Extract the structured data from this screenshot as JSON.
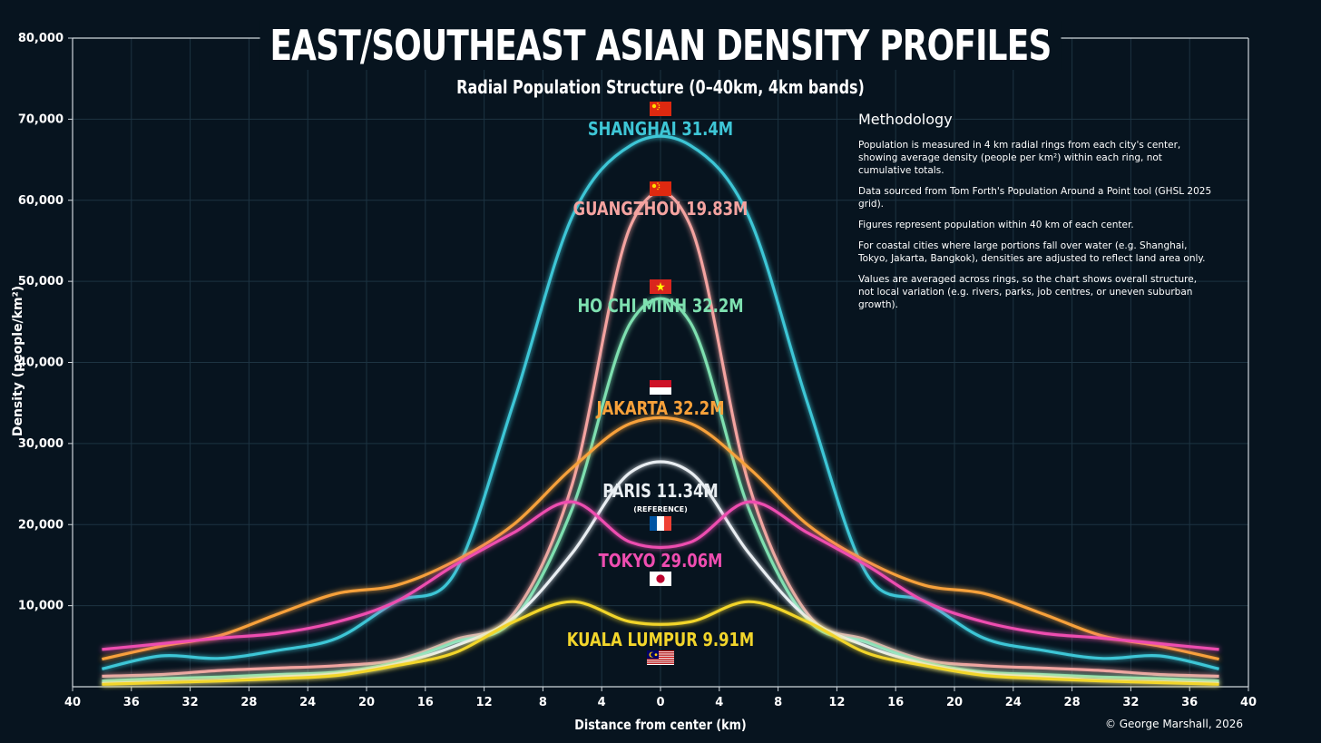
{
  "title": "EAST/SOUTHEAST ASIAN DENSITY PROFILES",
  "subtitle": "Radial Population Structure (0–40km, 4km bands)",
  "credit": "© George Marshall, 2026",
  "methodology": {
    "heading": "Methodology",
    "paragraphs": [
      "Population is measured in 4 km radial rings from each city's center, showing average density (people per km²) within each ring, not cumulative totals.",
      "Data sourced from Tom Forth's Population Around a Point tool (GHSL 2025 grid).",
      "Figures represent population within 40 km of each center.",
      "For coastal cities where large portions fall over water (e.g. Shanghai, Tokyo, Jakarta, Bangkok), densities are adjusted to reflect land area only.",
      "Values are averaged across rings, so the chart shows overall structure, not local variation (e.g. rivers, parks, job centres, or uneven suburban growth)."
    ]
  },
  "chart_data": {
    "type": "line",
    "xlabel": "Distance from center (km)",
    "ylabel": "Density (people/km²)",
    "xlim": [
      -40,
      40
    ],
    "ylim": [
      0,
      80000
    ],
    "x_tick_labels": [
      "40",
      "36",
      "32",
      "28",
      "24",
      "20",
      "16",
      "12",
      "8",
      "4",
      "0",
      "4",
      "8",
      "12",
      "16",
      "20",
      "24",
      "28",
      "32",
      "36",
      "40"
    ],
    "y_tick_labels": [
      "10,000",
      "20,000",
      "30,000",
      "40,000",
      "50,000",
      "60,000",
      "70,000",
      "80,000"
    ],
    "grid": true,
    "x_ring_distances": [
      2,
      6,
      10,
      14,
      18,
      22,
      26,
      30,
      34,
      38
    ],
    "series": [
      {
        "name": "SHANGHAI 31.4M",
        "color": "#3ec6d6",
        "values": [
          66800,
          58000,
          35000,
          14000,
          10500,
          6000,
          4500,
          3500,
          3800,
          2200
        ]
      },
      {
        "name": "GUANGZHOU 19.83M",
        "color": "#f4a3a0",
        "values": [
          57000,
          25000,
          9000,
          5800,
          3300,
          2600,
          2300,
          2000,
          1500,
          1300
        ]
      },
      {
        "name": "HO CHI MINH 32.2M",
        "color": "#7ee0b0",
        "values": [
          45000,
          22000,
          8300,
          5500,
          3000,
          1800,
          1500,
          1200,
          1000,
          700
        ]
      },
      {
        "name": "JAKARTA 32.2M",
        "color": "#f7a13a",
        "values": [
          32500,
          27000,
          20000,
          15500,
          12500,
          11500,
          9000,
          6300,
          5000,
          3400
        ]
      },
      {
        "name": "PARIS 11.34M",
        "color": "#e9eef2",
        "values": [
          26500,
          16500,
          8500,
          5000,
          2800,
          1600,
          1200,
          800,
          600,
          400
        ]
      },
      {
        "name": "TOKYO 29.06M",
        "color": "#ee4db0",
        "values": [
          17800,
          22800,
          19000,
          15000,
          10500,
          8000,
          6600,
          6000,
          5300,
          4600
        ]
      },
      {
        "name": "KUALA LUMPUR 9.91M",
        "color": "#f2d52b",
        "values": [
          8000,
          10500,
          8000,
          4200,
          2600,
          1400,
          1000,
          700,
          500,
          300
        ]
      }
    ],
    "annotations": [
      {
        "text": "SHANGHAI 31.4M",
        "flag": "china-flag-icon"
      },
      {
        "text": "GUANGZHOU 19.83M",
        "flag": "china-flag-icon"
      },
      {
        "text": "HO CHI MINH 32.2M",
        "flag": "vietnam-flag-icon"
      },
      {
        "text": "JAKARTA 32.2M",
        "flag": "indonesia-flag-icon"
      },
      {
        "text": "PARIS 11.34M",
        "sub": "(REFERENCE)",
        "flag": "france-flag-icon"
      },
      {
        "text": "TOKYO 29.06M",
        "flag": "japan-flag-icon"
      },
      {
        "text": "KUALA LUMPUR 9.91M",
        "flag": "malaysia-flag-icon"
      }
    ]
  }
}
